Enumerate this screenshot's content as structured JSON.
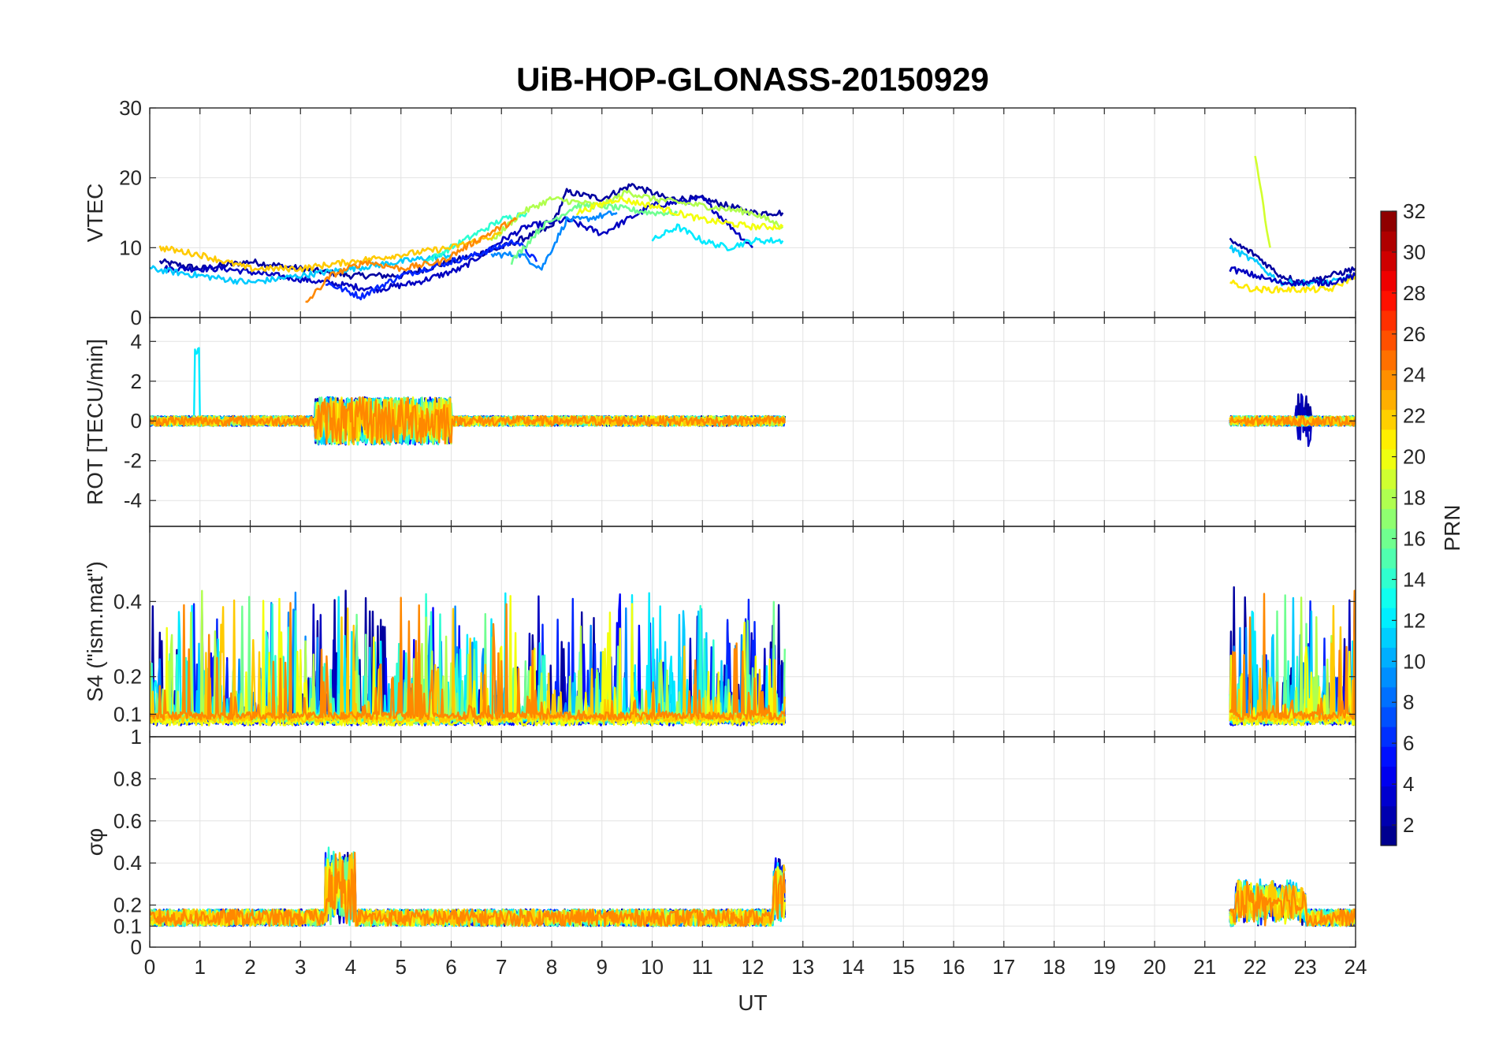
{
  "chart_data": {
    "title": "UiB-HOP-GLONASS-20150929",
    "type": "line",
    "xlabel": "UT",
    "xlim": [
      0,
      24
    ],
    "xticks": [
      "0",
      "1",
      "2",
      "3",
      "4",
      "5",
      "6",
      "7",
      "8",
      "9",
      "10",
      "11",
      "12",
      "13",
      "14",
      "15",
      "16",
      "17",
      "18",
      "19",
      "20",
      "21",
      "22",
      "23",
      "24"
    ],
    "grid": true,
    "panels": [
      {
        "id": "vtec",
        "ylabel": "VTEC",
        "ylim": [
          0,
          30
        ],
        "yticks": [
          "0",
          "10",
          "20",
          "30"
        ],
        "ytick_values": [
          0,
          10,
          20,
          30
        ],
        "series": [
          {
            "prn": 2,
            "x": [
              0.2,
              1.0,
              2.0,
              3.0,
              4.0,
              5.0,
              6.0,
              7.0,
              8.0,
              8.3,
              9.0,
              9.6,
              10.3,
              11.0,
              12.0,
              12.6
            ],
            "y": [
              8,
              7,
              8,
              7,
              6,
              6,
              8,
              10,
              13,
              18,
              17,
              19,
              17,
              17,
              15,
              15
            ]
          },
          {
            "prn": 3,
            "x": [
              0.3,
              1.5,
              2.5,
              3.5,
              4.5,
              5.3,
              6.2,
              7.0,
              7.5,
              8.3,
              9.0,
              10.0,
              11.0,
              12.0
            ],
            "y": [
              7,
              7,
              6,
              5,
              4,
              5,
              7,
              11,
              13,
              14,
              12,
              16,
              17,
              10
            ]
          },
          {
            "prn": 6,
            "x": [
              3.5,
              4.2,
              5.0,
              6.0,
              6.5,
              7.3,
              7.7
            ],
            "y": [
              5,
              3,
              6,
              8,
              9,
              11,
              8
            ]
          },
          {
            "prn": 9,
            "x": [
              6.8,
              7.4,
              7.8,
              8.3,
              8.6,
              9.3
            ],
            "y": [
              9,
              9,
              7,
              14,
              14,
              15
            ]
          },
          {
            "prn": 11,
            "x": [
              0.0,
              1.0,
              2.0,
              3.0,
              4.0,
              5.0,
              6.0
            ],
            "y": [
              7,
              6,
              5,
              6,
              7,
              8,
              9
            ]
          },
          {
            "prn": 12,
            "x": [
              10.0,
              10.5,
              11.0,
              11.5,
              12.0,
              12.6
            ],
            "y": [
              11,
              13,
              11,
              10,
              11,
              11
            ]
          },
          {
            "prn": 14,
            "x": [
              5.5,
              6.0,
              7.0,
              7.5
            ],
            "y": [
              8,
              10,
              14,
              15
            ]
          },
          {
            "prn": 16,
            "x": [
              7.2,
              7.8,
              8.5,
              9.0,
              10.0,
              10.5
            ],
            "y": [
              8,
              13,
              16,
              16,
              15,
              15
            ]
          },
          {
            "prn": 18,
            "x": [
              6.8,
              7.4,
              8.0,
              9.0,
              9.5,
              10.0,
              11.0,
              12.0,
              12.6
            ],
            "y": [
              11,
              15,
              17,
              16,
              18,
              17,
              16,
              15,
              13
            ]
          },
          {
            "prn": 20,
            "x": [
              8.5,
              9.3,
              10.0,
              11.0,
              12.0,
              12.6
            ],
            "y": [
              15,
              17,
              16,
              14,
              13,
              13
            ]
          },
          {
            "prn": 22,
            "x": [
              0.2,
              1.0,
              2.0,
              3.0,
              4.0,
              5.0,
              6.0,
              7.0
            ],
            "y": [
              10,
              9,
              7,
              7,
              8,
              9,
              10,
              12
            ]
          },
          {
            "prn": 24,
            "x": [
              3.1,
              3.6,
              4.3,
              5.0,
              5.8,
              6.5,
              7.0,
              7.3
            ],
            "y": [
              2,
              6,
              8,
              7,
              8,
              11,
              13,
              14
            ]
          }
        ],
        "series_b": [
          {
            "prn": 2,
            "x": [
              21.5,
              22.0,
              22.5,
              23.0,
              23.5,
              24.0
            ],
            "y": [
              11,
              9,
              6,
              5,
              6,
              7
            ]
          },
          {
            "prn": 11,
            "x": [
              21.5,
              22.0,
              22.5,
              23.0,
              23.5,
              24.0
            ],
            "y": [
              10,
              8,
              5,
              5,
              5,
              6
            ]
          },
          {
            "prn": 19,
            "x": [
              22.0,
              22.3
            ],
            "y": [
              23,
              10
            ]
          },
          {
            "prn": 21,
            "x": [
              21.5,
              22.0,
              22.5,
              23.0,
              23.5,
              24.0
            ],
            "y": [
              5,
              4,
              4,
              4,
              4,
              6
            ]
          },
          {
            "prn": 3,
            "x": [
              21.5,
              22.0,
              22.5,
              23.0,
              23.5,
              24.0
            ],
            "y": [
              7,
              6,
              5,
              5,
              5,
              6
            ]
          }
        ]
      },
      {
        "id": "rot",
        "ylabel": "ROT [TECU/min]",
        "ylim": [
          -5.3,
          5.2
        ],
        "yticks": [
          "-4",
          "-2",
          "0",
          "2",
          "4"
        ],
        "ytick_values": [
          -4,
          -2,
          0,
          2,
          4
        ]
      },
      {
        "id": "s4",
        "ylabel": "S4 (\"ism.mat\")",
        "ylim": [
          0.04,
          0.6
        ],
        "yticks": [
          "0.1",
          "0.2",
          "0.4"
        ],
        "ytick_values": [
          0.1,
          0.2,
          0.4
        ]
      },
      {
        "id": "sigphi",
        "ylabel": "σφ",
        "ylim": [
          0,
          1
        ],
        "yticks": [
          "0",
          "0.1",
          "0.2",
          "0.4",
          "0.6",
          "0.8",
          "1"
        ],
        "ytick_values": [
          0,
          0.1,
          0.2,
          0.4,
          0.6,
          0.8,
          1
        ]
      }
    ],
    "colorbar": {
      "label": "PRN",
      "colormap": "jet",
      "range": [
        1,
        32
      ],
      "ticks": [
        "2",
        "4",
        "6",
        "8",
        "10",
        "12",
        "14",
        "16",
        "18",
        "20",
        "22",
        "24",
        "26",
        "28",
        "30",
        "32"
      ],
      "tick_values": [
        2,
        4,
        6,
        8,
        10,
        12,
        14,
        16,
        18,
        20,
        22,
        24,
        26,
        28,
        30,
        32
      ]
    },
    "data_gap_ut": [
      12.7,
      21.5
    ]
  }
}
